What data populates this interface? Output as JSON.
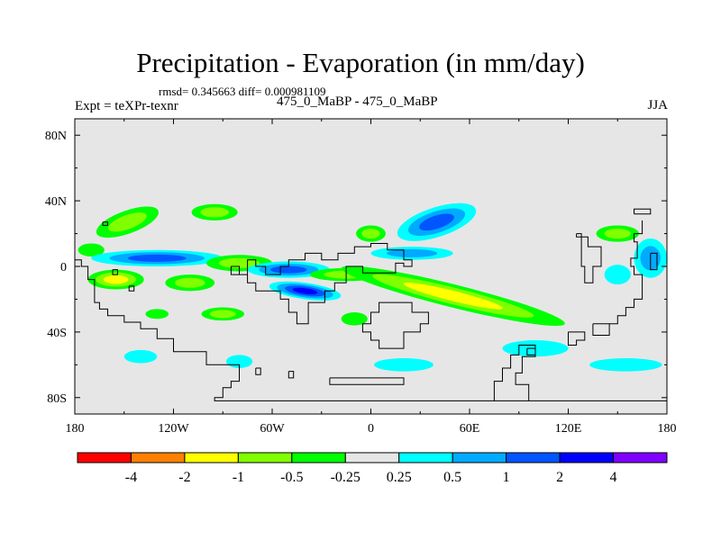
{
  "header": {
    "title": "Precipitation - Evaporation (in mm/day)",
    "stats": "rmsd= 0.345663 diff= 0.000981109",
    "left_label": "Expt = teXPr-texnr",
    "center_label": "475_0_MaBP - 475_0_MaBP",
    "right_label": "JJA"
  },
  "chart_data": {
    "type": "heatmap",
    "projection": "cylindrical-equidistant",
    "xlim": [
      -180,
      180
    ],
    "ylim": [
      -90,
      90
    ],
    "x_ticks": [
      {
        "value": -180,
        "label": "180"
      },
      {
        "value": -120,
        "label": "120W"
      },
      {
        "value": -60,
        "label": "60W"
      },
      {
        "value": 0,
        "label": "0"
      },
      {
        "value": 60,
        "label": "60E"
      },
      {
        "value": 120,
        "label": "120E"
      },
      {
        "value": 180,
        "label": "180"
      }
    ],
    "y_ticks": [
      {
        "value": 80,
        "label": "80N"
      },
      {
        "value": 40,
        "label": "40N"
      },
      {
        "value": 0,
        "label": "0"
      },
      {
        "value": -40,
        "label": "40S"
      },
      {
        "value": -80,
        "label": "80S"
      }
    ],
    "background_color": "#e6e6e6",
    "colorbar": {
      "colors": [
        "#ff0000",
        "#ff8000",
        "#ffff00",
        "#80ff00",
        "#00ff00",
        "#e6e6e6",
        "#00ffff",
        "#00aaff",
        "#0055ff",
        "#0000ff",
        "#8000ff"
      ],
      "labels": [
        "-4",
        "-2",
        "-1",
        "-0.5",
        "-0.25",
        "0.25",
        "0.5",
        "1",
        "2",
        "4"
      ]
    },
    "contour_regions": [
      {
        "lon": -148,
        "lat": 27,
        "rlon": 20,
        "rlat": 7,
        "rot": -20,
        "colors": [
          "#00ff00",
          "#80ff00"
        ]
      },
      {
        "lon": -95,
        "lat": 33,
        "rlon": 14,
        "rlat": 5,
        "rot": 0,
        "colors": [
          "#00ff00",
          "#80ff00"
        ]
      },
      {
        "lon": -170,
        "lat": 10,
        "rlon": 8,
        "rlat": 4,
        "rot": 0,
        "colors": [
          "#00ff00"
        ]
      },
      {
        "lon": -130,
        "lat": 5,
        "rlon": 40,
        "rlat": 5,
        "rot": 0,
        "colors": [
          "#00ffff",
          "#00aaff",
          "#0055ff"
        ]
      },
      {
        "lon": -155,
        "lat": -8,
        "rlon": 17,
        "rlat": 6,
        "rot": 0,
        "colors": [
          "#00ff00",
          "#80ff00",
          "#ffff00"
        ]
      },
      {
        "lon": -110,
        "lat": -10,
        "rlon": 15,
        "rlat": 5,
        "rot": 0,
        "colors": [
          "#00ff00",
          "#80ff00"
        ]
      },
      {
        "lon": -80,
        "lat": 2,
        "rlon": 20,
        "rlat": 5,
        "rot": 0,
        "colors": [
          "#00ff00",
          "#80ff00"
        ]
      },
      {
        "lon": -50,
        "lat": -2,
        "rlon": 25,
        "rlat": 5,
        "rot": 0,
        "colors": [
          "#00ffff",
          "#00aaff",
          "#0055ff"
        ]
      },
      {
        "lon": -40,
        "lat": -15,
        "rlon": 22,
        "rlat": 5,
        "rot": 8,
        "colors": [
          "#00ffff",
          "#00aaff",
          "#0055ff",
          "#0000ff"
        ]
      },
      {
        "lon": -15,
        "lat": -5,
        "rlon": 22,
        "rlat": 4,
        "rot": 0,
        "colors": [
          "#00ff00",
          "#80ff00"
        ]
      },
      {
        "lon": 50,
        "lat": -18,
        "rlon": 70,
        "rlat": 7,
        "rot": 14,
        "colors": [
          "#00ff00",
          "#80ff00",
          "#ffff00"
        ]
      },
      {
        "lon": 40,
        "lat": 27,
        "rlon": 25,
        "rlat": 9,
        "rot": -18,
        "colors": [
          "#00ffff",
          "#00aaff",
          "#0055ff"
        ]
      },
      {
        "lon": 0,
        "lat": 20,
        "rlon": 9,
        "rlat": 5,
        "rot": 0,
        "colors": [
          "#00ff00",
          "#80ff00"
        ]
      },
      {
        "lon": 25,
        "lat": 8,
        "rlon": 25,
        "rlat": 4,
        "rot": 0,
        "colors": [
          "#00ffff",
          "#00aaff"
        ]
      },
      {
        "lon": -90,
        "lat": -29,
        "rlon": 13,
        "rlat": 4,
        "rot": 0,
        "colors": [
          "#00ff00",
          "#80ff00"
        ]
      },
      {
        "lon": -130,
        "lat": -29,
        "rlon": 7,
        "rlat": 3,
        "rot": 0,
        "colors": [
          "#00ff00"
        ]
      },
      {
        "lon": -10,
        "lat": -32,
        "rlon": 8,
        "rlat": 4,
        "rot": 0,
        "colors": [
          "#00ff00"
        ]
      },
      {
        "lon": 150,
        "lat": 20,
        "rlon": 13,
        "rlat": 5,
        "rot": 0,
        "colors": [
          "#00ff00",
          "#80ff00"
        ]
      },
      {
        "lon": 170,
        "lat": 5,
        "rlon": 10,
        "rlat": 12,
        "rot": 0,
        "colors": [
          "#00ffff",
          "#00aaff"
        ]
      },
      {
        "lon": 150,
        "lat": -5,
        "rlon": 8,
        "rlat": 6,
        "rot": 0,
        "colors": [
          "#00ffff"
        ]
      },
      {
        "lon": 100,
        "lat": -50,
        "rlon": 20,
        "rlat": 5,
        "rot": 0,
        "colors": [
          "#00ffff"
        ]
      },
      {
        "lon": 155,
        "lat": -60,
        "rlon": 22,
        "rlat": 4,
        "rot": 0,
        "colors": [
          "#00ffff"
        ]
      },
      {
        "lon": -140,
        "lat": -55,
        "rlon": 10,
        "rlat": 4,
        "rot": 0,
        "colors": [
          "#00ffff"
        ]
      },
      {
        "lon": -80,
        "lat": -58,
        "rlon": 8,
        "rlat": 4,
        "rot": 0,
        "colors": [
          "#00ffff"
        ]
      },
      {
        "lon": 20,
        "lat": -60,
        "rlon": 18,
        "rlat": 4,
        "rot": 0,
        "colors": [
          "#00ffff"
        ]
      }
    ],
    "coastlines": [
      [
        [
          -163,
          27
        ],
        [
          -160,
          27
        ],
        [
          -160,
          25
        ],
        [
          -163,
          25
        ],
        [
          -163,
          27
        ]
      ],
      [
        [
          -180,
          4
        ],
        [
          -176,
          4
        ],
        [
          -176,
          0
        ],
        [
          -172,
          0
        ],
        [
          -172,
          -8
        ],
        [
          -168,
          -8
        ],
        [
          -168,
          -22
        ],
        [
          -165,
          -22
        ],
        [
          -165,
          -26
        ],
        [
          -160,
          -26
        ],
        [
          -160,
          -30
        ],
        [
          -150,
          -30
        ],
        [
          -150,
          -34
        ],
        [
          -140,
          -34
        ],
        [
          -140,
          -38
        ],
        [
          -130,
          -38
        ],
        [
          -130,
          -44
        ],
        [
          -120,
          -44
        ],
        [
          -120,
          -52
        ],
        [
          -100,
          -52
        ],
        [
          -100,
          -60
        ],
        [
          -80,
          -60
        ],
        [
          -80,
          -70
        ],
        [
          -85,
          -70
        ],
        [
          -85,
          -74
        ],
        [
          -90,
          -74
        ],
        [
          -90,
          -80
        ],
        [
          -95,
          -80
        ],
        [
          -95,
          -82
        ],
        [
          180,
          -82
        ]
      ],
      [
        [
          -157,
          -2
        ],
        [
          -154,
          -2
        ],
        [
          -154,
          -5
        ],
        [
          -157,
          -5
        ],
        [
          -157,
          -2
        ]
      ],
      [
        [
          -147,
          -12
        ],
        [
          -144,
          -12
        ],
        [
          -144,
          -15
        ],
        [
          -147,
          -15
        ],
        [
          -147,
          -12
        ]
      ],
      [
        [
          -70,
          -62
        ],
        [
          -67,
          -62
        ],
        [
          -67,
          -66
        ],
        [
          -70,
          -66
        ],
        [
          -70,
          -62
        ]
      ],
      [
        [
          -50,
          -64
        ],
        [
          -47,
          -64
        ],
        [
          -47,
          -68
        ],
        [
          -50,
          -68
        ],
        [
          -50,
          -64
        ]
      ],
      [
        [
          -25,
          -68
        ],
        [
          20,
          -68
        ],
        [
          20,
          -72
        ],
        [
          -25,
          -72
        ],
        [
          -25,
          -68
        ]
      ],
      [
        [
          -85,
          0
        ],
        [
          -80,
          0
        ],
        [
          -80,
          -5
        ],
        [
          -75,
          -5
        ],
        [
          -75,
          4
        ],
        [
          -70,
          4
        ],
        [
          -70,
          0
        ],
        [
          -64,
          0
        ],
        [
          -64,
          -5
        ],
        [
          -55,
          -5
        ],
        [
          -55,
          0
        ],
        [
          -50,
          0
        ],
        [
          -50,
          4
        ],
        [
          -40,
          4
        ],
        [
          -40,
          8
        ],
        [
          -30,
          8
        ],
        [
          -30,
          4
        ],
        [
          -20,
          4
        ],
        [
          -20,
          8
        ],
        [
          -10,
          8
        ],
        [
          -10,
          12
        ],
        [
          0,
          12
        ],
        [
          0,
          14
        ],
        [
          10,
          14
        ],
        [
          10,
          10
        ],
        [
          20,
          10
        ],
        [
          20,
          4
        ],
        [
          25,
          4
        ],
        [
          25,
          0
        ],
        [
          20,
          0
        ],
        [
          20,
          2
        ],
        [
          15,
          2
        ],
        [
          15,
          -4
        ],
        [
          -5,
          -4
        ],
        [
          -5,
          0
        ],
        [
          -15,
          0
        ],
        [
          -15,
          -10
        ],
        [
          -22,
          -10
        ],
        [
          -22,
          -15
        ],
        [
          -28,
          -15
        ],
        [
          -28,
          -22
        ],
        [
          -38,
          -22
        ],
        [
          -38,
          -35
        ],
        [
          -45,
          -35
        ],
        [
          -45,
          -28
        ],
        [
          -50,
          -28
        ],
        [
          -50,
          -20
        ],
        [
          -55,
          -20
        ],
        [
          -55,
          -15
        ],
        [
          -70,
          -15
        ],
        [
          -70,
          -10
        ],
        [
          -75,
          -10
        ],
        [
          -75,
          -5
        ],
        [
          -85,
          -5
        ],
        [
          -85,
          0
        ]
      ],
      [
        [
          10,
          -22
        ],
        [
          25,
          -22
        ],
        [
          25,
          -28
        ],
        [
          35,
          -28
        ],
        [
          35,
          -35
        ],
        [
          30,
          -35
        ],
        [
          30,
          -40
        ],
        [
          20,
          -40
        ],
        [
          20,
          -50
        ],
        [
          5,
          -50
        ],
        [
          5,
          -45
        ],
        [
          0,
          -45
        ],
        [
          0,
          -40
        ],
        [
          -5,
          -40
        ],
        [
          -5,
          -35
        ],
        [
          0,
          -35
        ],
        [
          0,
          -28
        ],
        [
          5,
          -28
        ],
        [
          5,
          -22
        ],
        [
          10,
          -22
        ]
      ],
      [
        [
          95,
          -50
        ],
        [
          100,
          -50
        ],
        [
          100,
          -54
        ],
        [
          95,
          -54
        ],
        [
          95,
          -50
        ]
      ],
      [
        [
          120,
          -40
        ],
        [
          130,
          -40
        ],
        [
          130,
          -45
        ],
        [
          125,
          -45
        ],
        [
          125,
          -48
        ],
        [
          120,
          -48
        ],
        [
          120,
          -40
        ]
      ],
      [
        [
          135,
          -35
        ],
        [
          145,
          -35
        ],
        [
          145,
          -42
        ],
        [
          135,
          -42
        ],
        [
          135,
          -35
        ]
      ],
      [
        [
          96,
          -82
        ],
        [
          96,
          -72
        ],
        [
          88,
          -72
        ],
        [
          88,
          -65
        ],
        [
          92,
          -65
        ],
        [
          92,
          -55
        ],
        [
          100,
          -55
        ],
        [
          100,
          -48
        ],
        [
          90,
          -48
        ],
        [
          90,
          -54
        ],
        [
          85,
          -54
        ],
        [
          85,
          -62
        ],
        [
          80,
          -62
        ],
        [
          80,
          -70
        ],
        [
          75,
          -70
        ],
        [
          75,
          -82
        ]
      ],
      [
        [
          145,
          -35
        ],
        [
          150,
          -35
        ],
        [
          150,
          -30
        ],
        [
          155,
          -30
        ],
        [
          155,
          -25
        ],
        [
          160,
          -25
        ],
        [
          160,
          -20
        ],
        [
          165,
          -20
        ],
        [
          165,
          -5
        ],
        [
          160,
          -5
        ],
        [
          160,
          0
        ],
        [
          158,
          0
        ],
        [
          158,
          5
        ],
        [
          162,
          5
        ],
        [
          162,
          15
        ],
        [
          160,
          15
        ],
        [
          160,
          20
        ],
        [
          165,
          20
        ],
        [
          165,
          28
        ]
      ],
      [
        [
          160,
          32
        ],
        [
          170,
          32
        ],
        [
          170,
          35
        ],
        [
          160,
          35
        ],
        [
          160,
          32
        ]
      ],
      [
        [
          125,
          20
        ],
        [
          128,
          20
        ],
        [
          128,
          0
        ],
        [
          130,
          0
        ],
        [
          130,
          -10
        ],
        [
          135,
          -10
        ],
        [
          135,
          0
        ],
        [
          140,
          0
        ],
        [
          140,
          12
        ],
        [
          132,
          12
        ],
        [
          132,
          18
        ],
        [
          125,
          18
        ],
        [
          125,
          20
        ]
      ],
      [
        [
          170,
          8
        ],
        [
          174,
          8
        ],
        [
          174,
          -2
        ],
        [
          170,
          -2
        ],
        [
          170,
          8
        ]
      ]
    ]
  }
}
